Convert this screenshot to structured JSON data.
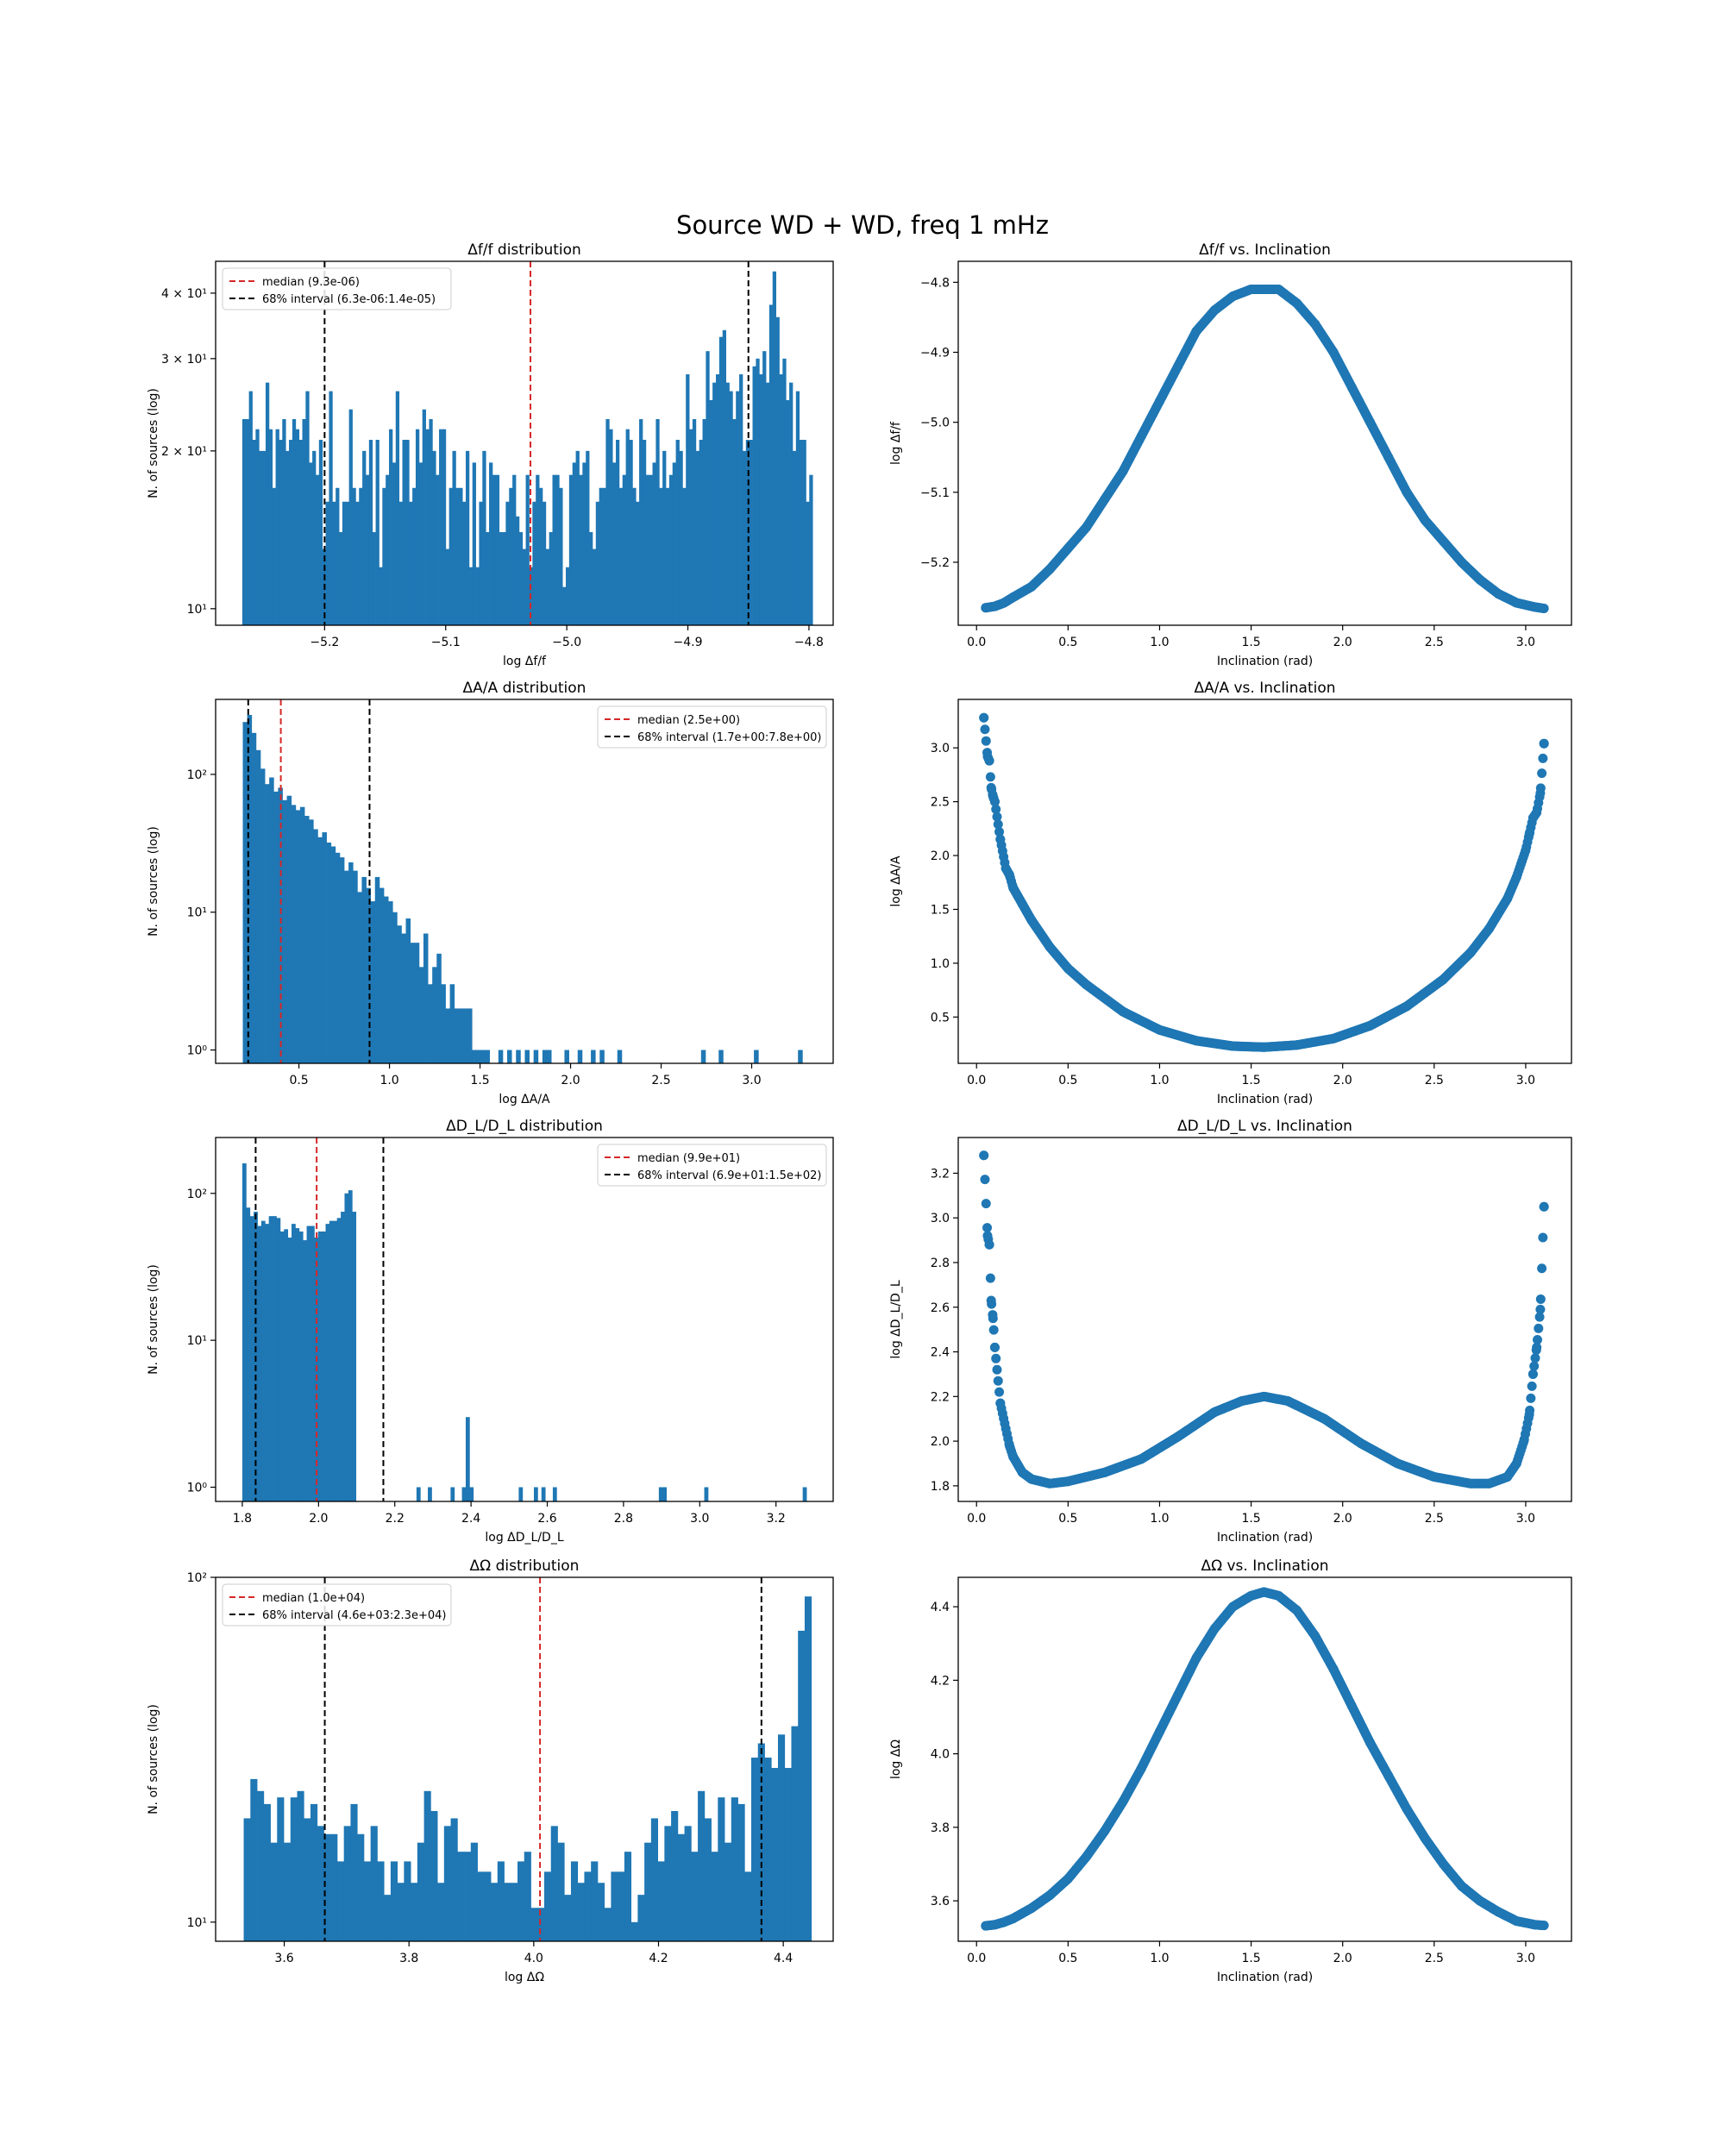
{
  "figure": {
    "suptitle": "Source WD + WD, freq 1 mHz",
    "colors": {
      "bar": "#1f77b4",
      "point": "#1f77b4",
      "median_line": "#d62728",
      "interval_line": "#000000"
    }
  },
  "chart_data": [
    {
      "id": "hist_df",
      "type": "bar",
      "title": "Δf/f distribution",
      "xlabel": "log Δf/f",
      "ylabel": "N. of sources (log)",
      "yscale": "log",
      "xlim": [
        -5.29,
        -4.78
      ],
      "ylim": [
        9.3,
        46
      ],
      "xticks": [
        -5.2,
        -5.1,
        -5.0,
        -4.9,
        -4.8
      ],
      "xtick_labels": [
        "−5.2",
        "−5.1",
        "−5.0",
        "−4.9",
        "−4.8"
      ],
      "yticks": [
        10,
        20,
        30,
        40
      ],
      "ytick_labels": [
        "10¹",
        "2 × 10¹",
        "3 × 10¹",
        "4 × 10¹"
      ],
      "bin_start": -5.268,
      "bin_end": -4.797,
      "values": [
        23,
        23,
        26,
        21,
        22,
        20,
        20,
        27,
        22,
        17,
        22,
        21,
        23,
        20,
        21,
        23,
        22,
        21,
        23,
        26,
        19,
        20,
        18,
        21,
        13,
        16,
        26,
        16,
        17,
        14,
        16,
        16,
        24,
        17,
        16,
        17,
        20,
        18,
        21,
        14,
        21,
        12,
        17,
        18,
        22,
        19,
        26,
        16,
        21,
        21,
        16,
        17,
        22,
        19,
        24,
        22,
        23,
        20,
        18,
        22,
        22,
        13,
        17,
        20,
        17,
        17,
        16,
        20,
        12,
        19,
        12,
        16,
        20,
        14,
        19,
        18,
        18,
        14,
        14,
        16,
        17,
        18,
        15,
        14,
        13,
        18,
        12,
        16,
        18,
        17,
        16,
        13,
        14,
        18,
        18,
        17,
        11,
        12,
        18,
        19,
        20,
        18,
        19,
        20,
        14,
        13,
        16,
        17,
        17,
        23,
        22,
        19,
        21,
        17,
        18,
        22,
        21,
        17,
        16,
        23,
        21,
        18,
        18,
        19,
        23,
        17,
        20,
        17,
        18,
        19,
        21,
        20,
        17,
        28,
        22,
        23,
        20,
        21,
        23,
        31,
        25,
        27,
        28,
        33,
        34,
        27,
        26,
        23,
        26,
        28,
        20,
        21,
        21,
        29,
        30,
        28,
        31,
        27,
        38,
        44,
        36,
        28,
        30,
        25,
        27,
        20,
        26,
        21,
        21,
        16,
        18
      ],
      "median": -5.03,
      "interval": [
        -5.2,
        -4.85
      ],
      "legend": {
        "placement": "upper left",
        "median": "median (9.3e-06)",
        "interval": "68% interval (6.3e-06:1.4e-05)"
      }
    },
    {
      "id": "scatter_df",
      "type": "scatter",
      "title": "Δf/f vs. Inclination",
      "xlabel": "Inclination (rad)",
      "ylabel": "log Δf/f",
      "xlim": [
        -0.1,
        3.25
      ],
      "ylim": [
        -5.29,
        -4.77
      ],
      "xticks": [
        0.0,
        0.5,
        1.0,
        1.5,
        2.0,
        2.5,
        3.0
      ],
      "xtick_labels": [
        "0.0",
        "0.5",
        "1.0",
        "1.5",
        "2.0",
        "2.5",
        "3.0"
      ],
      "yticks": [
        -5.2,
        -5.1,
        -5.0,
        -4.9,
        -4.8
      ],
      "ytick_labels": [
        "−5.2",
        "−5.1",
        "−5.0",
        "−4.9",
        "−4.8"
      ],
      "x": [
        0.05,
        0.1,
        0.15,
        0.2,
        0.3,
        0.4,
        0.5,
        0.6,
        0.7,
        0.8,
        0.9,
        1.0,
        1.1,
        1.2,
        1.3,
        1.4,
        1.5,
        1.57,
        1.65,
        1.75,
        1.85,
        1.95,
        2.05,
        2.15,
        2.25,
        2.35,
        2.45,
        2.55,
        2.65,
        2.75,
        2.85,
        2.95,
        3.05,
        3.1
      ],
      "y": [
        -5.265,
        -5.263,
        -5.258,
        -5.25,
        -5.235,
        -5.21,
        -5.18,
        -5.15,
        -5.11,
        -5.07,
        -5.02,
        -4.97,
        -4.92,
        -4.87,
        -4.84,
        -4.82,
        -4.81,
        -4.81,
        -4.81,
        -4.83,
        -4.86,
        -4.9,
        -4.95,
        -5.0,
        -5.05,
        -5.1,
        -5.14,
        -5.17,
        -5.2,
        -5.225,
        -5.245,
        -5.258,
        -5.264,
        -5.266
      ]
    },
    {
      "id": "hist_da",
      "type": "bar",
      "title": "ΔA/A distribution",
      "xlabel": "log ΔA/A",
      "ylabel": "N. of sources (log)",
      "yscale": "log",
      "xlim": [
        0.04,
        3.45
      ],
      "ylim": [
        0.8,
        350
      ],
      "xticks": [
        0.5,
        1.0,
        1.5,
        2.0,
        2.5,
        3.0
      ],
      "xtick_labels": [
        "0.5",
        "1.0",
        "1.5",
        "2.0",
        "2.5",
        "3.0"
      ],
      "yticks": [
        1,
        10,
        100
      ],
      "ytick_labels": [
        "10⁰",
        "10¹",
        "10²"
      ],
      "bin_start": 0.19,
      "bin_end": 3.28,
      "values": [
        240,
        270,
        200,
        150,
        110,
        85,
        95,
        75,
        80,
        65,
        70,
        60,
        55,
        58,
        50,
        47,
        40,
        35,
        38,
        32,
        30,
        27,
        25,
        20,
        23,
        20,
        14,
        18,
        15,
        12,
        18,
        15,
        13,
        12,
        10,
        8,
        7,
        9,
        6,
        6,
        4,
        7,
        3,
        4,
        5,
        3,
        2,
        3,
        2,
        2,
        2,
        2,
        1,
        1,
        1,
        1,
        0,
        0,
        1,
        0,
        1,
        0,
        1,
        0,
        1,
        0,
        1,
        0,
        1,
        1,
        0,
        0,
        0,
        1,
        0,
        0,
        1,
        0,
        0,
        1,
        0,
        1,
        0,
        0,
        0,
        1,
        0,
        0,
        0,
        0,
        0,
        0,
        0,
        0,
        0,
        0,
        0,
        0,
        0,
        0,
        0,
        0,
        0,
        0,
        1,
        0,
        0,
        0,
        1,
        0,
        0,
        0,
        0,
        0,
        0,
        0,
        1,
        0,
        0,
        0,
        0,
        0,
        0,
        0,
        0,
        0,
        1
      ],
      "median": 0.4,
      "interval": [
        0.22,
        0.89
      ],
      "legend": {
        "placement": "upper right",
        "median": "median (2.5e+00)",
        "interval": "68% interval (1.7e+00:7.8e+00)"
      }
    },
    {
      "id": "scatter_da",
      "type": "scatter",
      "title": "ΔA/A vs. Inclination",
      "xlabel": "Inclination (rad)",
      "ylabel": "log ΔA/A",
      "xlim": [
        -0.1,
        3.25
      ],
      "ylim": [
        0.07,
        3.45
      ],
      "xticks": [
        0.0,
        0.5,
        1.0,
        1.5,
        2.0,
        2.5,
        3.0
      ],
      "xtick_labels": [
        "0.0",
        "0.5",
        "1.0",
        "1.5",
        "2.0",
        "2.5",
        "3.0"
      ],
      "yticks": [
        0.5,
        1.0,
        1.5,
        2.0,
        2.5,
        3.0
      ],
      "ytick_labels": [
        "0.5",
        "1.0",
        "1.5",
        "2.0",
        "2.5",
        "3.0"
      ],
      "x": [
        0.04,
        0.06,
        0.07,
        0.08,
        0.09,
        0.1,
        0.13,
        0.16,
        0.18,
        0.2,
        0.25,
        0.3,
        0.4,
        0.5,
        0.6,
        0.8,
        1.0,
        1.2,
        1.4,
        1.57,
        1.75,
        1.95,
        2.15,
        2.35,
        2.55,
        2.7,
        2.8,
        2.9,
        2.95,
        3.0,
        3.02,
        3.04,
        3.06,
        3.08,
        3.1
      ],
      "y": [
        3.28,
        2.92,
        2.88,
        2.63,
        2.55,
        2.5,
        2.15,
        1.88,
        1.82,
        1.7,
        1.55,
        1.4,
        1.15,
        0.95,
        0.8,
        0.55,
        0.38,
        0.28,
        0.23,
        0.22,
        0.24,
        0.3,
        0.42,
        0.6,
        0.85,
        1.1,
        1.32,
        1.6,
        1.8,
        2.05,
        2.2,
        2.35,
        2.4,
        2.58,
        3.04
      ]
    },
    {
      "id": "hist_dl",
      "type": "bar",
      "title": "ΔD_L/D_L distribution",
      "xlabel": "log ΔD_L/D_L",
      "ylabel": "N. of sources (log)",
      "yscale": "log",
      "xlim": [
        1.73,
        3.35
      ],
      "ylim": [
        0.8,
        240
      ],
      "xticks": [
        1.8,
        2.0,
        2.2,
        2.4,
        2.6,
        2.8,
        3.0,
        3.2
      ],
      "xtick_labels": [
        "1.8",
        "2.0",
        "2.2",
        "2.4",
        "2.6",
        "2.8",
        "3.0",
        "3.2"
      ],
      "yticks": [
        1,
        10,
        100
      ],
      "ytick_labels": [
        "10⁰",
        "10¹",
        "10²"
      ],
      "bin_start": 1.8,
      "bin_end": 3.28,
      "values": [
        160,
        80,
        70,
        75,
        60,
        65,
        62,
        70,
        70,
        68,
        55,
        57,
        50,
        62,
        58,
        55,
        48,
        60,
        60,
        50,
        55,
        55,
        62,
        65,
        65,
        68,
        75,
        100,
        105,
        75,
        0,
        0,
        0,
        0,
        0,
        0,
        0,
        0,
        0,
        0,
        0,
        0,
        0,
        0,
        0,
        0,
        1,
        0,
        0,
        1,
        0,
        0,
        0,
        0,
        0,
        1,
        0,
        0,
        1,
        3,
        1,
        0,
        0,
        0,
        0,
        0,
        0,
        0,
        0,
        0,
        0,
        0,
        0,
        1,
        0,
        0,
        0,
        1,
        0,
        1,
        0,
        0,
        1,
        0,
        0,
        0,
        0,
        0,
        0,
        0,
        0,
        0,
        0,
        0,
        0,
        0,
        0,
        0,
        0,
        0,
        0,
        0,
        0,
        0,
        0,
        0,
        0,
        0,
        0,
        0,
        1,
        1,
        0,
        0,
        0,
        0,
        0,
        0,
        0,
        0,
        0,
        0,
        1,
        0,
        0,
        0,
        0,
        0,
        0,
        0,
        0,
        0,
        0,
        0,
        0,
        0,
        0,
        0,
        0,
        0,
        0,
        0,
        0,
        0,
        0,
        0,
        0,
        0,
        1
      ],
      "median": 1.995,
      "interval": [
        1.835,
        2.17
      ],
      "legend": {
        "placement": "upper right",
        "median": "median (9.9e+01)",
        "interval": "68% interval (6.9e+01:1.5e+02)"
      }
    },
    {
      "id": "scatter_dl",
      "type": "scatter",
      "title": "ΔD_L/D_L vs. Inclination",
      "xlabel": "Inclination (rad)",
      "ylabel": "log ΔD_L/D_L",
      "xlim": [
        -0.1,
        3.25
      ],
      "ylim": [
        1.73,
        3.36
      ],
      "xticks": [
        0.0,
        0.5,
        1.0,
        1.5,
        2.0,
        2.5,
        3.0
      ],
      "xtick_labels": [
        "0.0",
        "0.5",
        "1.0",
        "1.5",
        "2.0",
        "2.5",
        "3.0"
      ],
      "yticks": [
        1.8,
        2.0,
        2.2,
        2.4,
        2.6,
        2.8,
        3.0,
        3.2
      ],
      "ytick_labels": [
        "1.8",
        "2.0",
        "2.2",
        "2.4",
        "2.6",
        "2.8",
        "3.0",
        "3.2"
      ],
      "x": [
        0.04,
        0.06,
        0.07,
        0.08,
        0.09,
        0.1,
        0.13,
        0.18,
        0.2,
        0.25,
        0.3,
        0.4,
        0.5,
        0.7,
        0.9,
        1.1,
        1.3,
        1.45,
        1.57,
        1.7,
        1.9,
        2.1,
        2.3,
        2.5,
        2.7,
        2.8,
        2.9,
        2.95,
        2.99,
        3.02,
        3.04,
        3.06,
        3.08,
        3.1
      ],
      "y": [
        3.28,
        2.92,
        2.88,
        2.63,
        2.55,
        2.42,
        2.17,
        1.98,
        1.93,
        1.86,
        1.83,
        1.81,
        1.82,
        1.86,
        1.92,
        2.02,
        2.13,
        2.18,
        2.2,
        2.18,
        2.1,
        1.99,
        1.9,
        1.84,
        1.81,
        1.81,
        1.84,
        1.9,
        2.0,
        2.12,
        2.3,
        2.42,
        2.59,
        3.05
      ]
    },
    {
      "id": "hist_dw",
      "type": "bar",
      "title": "ΔΩ distribution",
      "xlabel": "log ΔΩ",
      "ylabel": "N. of sources (log)",
      "yscale": "log",
      "xlim": [
        3.49,
        4.48
      ],
      "ylim": [
        8.8,
        100
      ],
      "xticks": [
        3.6,
        3.8,
        4.0,
        4.2,
        4.4
      ],
      "xtick_labels": [
        "3.6",
        "3.8",
        "4.0",
        "4.2",
        "4.4"
      ],
      "yticks": [
        10,
        100
      ],
      "ytick_labels": [
        "10¹",
        "10²"
      ],
      "bin_start": 3.535,
      "bin_end": 4.445,
      "values": [
        20,
        26,
        24,
        22,
        17,
        23,
        17,
        23,
        24,
        20,
        22,
        19,
        18,
        18,
        15,
        19,
        22,
        18,
        15,
        19,
        15,
        12,
        15,
        13,
        15,
        13,
        17,
        24,
        21,
        13,
        19,
        20,
        16,
        16,
        17,
        14,
        14,
        13,
        15,
        13,
        13,
        15,
        16,
        11,
        11,
        14,
        19,
        17,
        12,
        15,
        13,
        14,
        15,
        13,
        11,
        14,
        14,
        16,
        10,
        12,
        17,
        20,
        15,
        19,
        21,
        18,
        19,
        16,
        24,
        20,
        16,
        23,
        17,
        23,
        22,
        14,
        30,
        33,
        30,
        28,
        35,
        28,
        37,
        70,
        88
      ],
      "median": 4.01,
      "interval": [
        3.665,
        4.365
      ],
      "legend": {
        "placement": "upper left",
        "median": "median (1.0e+04)",
        "interval": "68% interval (4.6e+03:2.3e+04)"
      }
    },
    {
      "id": "scatter_dw",
      "type": "scatter",
      "title": "ΔΩ vs. Inclination",
      "xlabel": "Inclination (rad)",
      "ylabel": "log ΔΩ",
      "xlim": [
        -0.1,
        3.25
      ],
      "ylim": [
        3.49,
        4.48
      ],
      "xticks": [
        0.0,
        0.5,
        1.0,
        1.5,
        2.0,
        2.5,
        3.0
      ],
      "xtick_labels": [
        "0.0",
        "0.5",
        "1.0",
        "1.5",
        "2.0",
        "2.5",
        "3.0"
      ],
      "yticks": [
        3.6,
        3.8,
        4.0,
        4.2,
        4.4
      ],
      "ytick_labels": [
        "3.6",
        "3.8",
        "4.0",
        "4.2",
        "4.4"
      ],
      "x": [
        0.05,
        0.1,
        0.15,
        0.2,
        0.3,
        0.4,
        0.5,
        0.6,
        0.7,
        0.8,
        0.9,
        1.0,
        1.1,
        1.2,
        1.3,
        1.4,
        1.5,
        1.57,
        1.65,
        1.75,
        1.85,
        1.95,
        2.05,
        2.15,
        2.25,
        2.35,
        2.45,
        2.55,
        2.65,
        2.75,
        2.85,
        2.95,
        3.05,
        3.1
      ],
      "y": [
        3.532,
        3.535,
        3.542,
        3.552,
        3.58,
        3.615,
        3.66,
        3.72,
        3.79,
        3.87,
        3.96,
        4.06,
        4.16,
        4.26,
        4.34,
        4.4,
        4.43,
        4.44,
        4.43,
        4.39,
        4.32,
        4.23,
        4.13,
        4.03,
        3.94,
        3.85,
        3.77,
        3.7,
        3.64,
        3.6,
        3.57,
        3.545,
        3.535,
        3.533
      ]
    }
  ]
}
